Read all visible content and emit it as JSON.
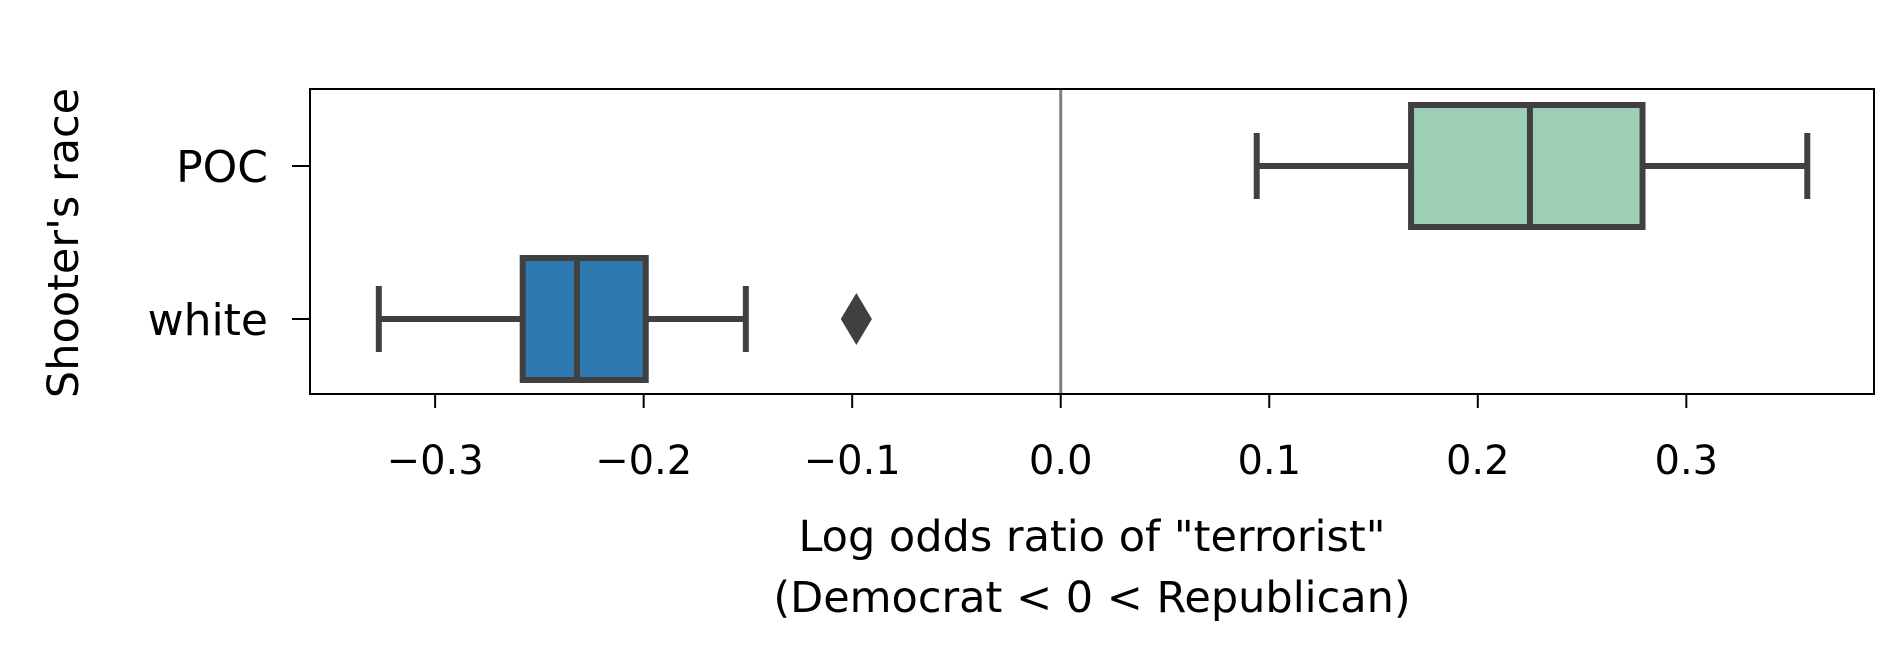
{
  "chart_data": {
    "type": "boxplot",
    "orientation": "horizontal",
    "xlabel": [
      "Log odds ratio of \"terrorist\"",
      "(Democrat < 0 < Republican)"
    ],
    "ylabel": "Shooter's race",
    "xlim": [
      -0.36,
      0.39
    ],
    "x_ticks": [
      -0.3,
      -0.2,
      -0.1,
      0.0,
      0.1,
      0.2,
      0.3
    ],
    "x_tick_labels": [
      "−0.3",
      "−0.2",
      "−0.1",
      "0.0",
      "0.1",
      "0.2",
      "0.3"
    ],
    "reference_line": {
      "x": 0.0,
      "color": "#808080"
    },
    "grid": false,
    "categories": [
      "POC",
      "white"
    ],
    "boxes": [
      {
        "category": "POC",
        "whisker_low": 0.094,
        "q1": 0.168,
        "median": 0.225,
        "q3": 0.279,
        "whisker_high": 0.358,
        "outliers": [],
        "color": "#9ecfb6"
      },
      {
        "category": "white",
        "whisker_low": -0.327,
        "q1": -0.258,
        "median": -0.232,
        "q3": -0.199,
        "whisker_high": -0.151,
        "outliers": [
          -0.098
        ],
        "color": "#2e7ab0"
      }
    ],
    "line_color": "#404040"
  }
}
